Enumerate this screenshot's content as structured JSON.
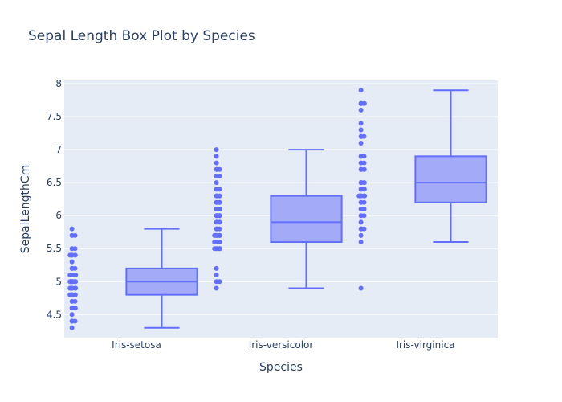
{
  "chart_data": {
    "type": "box",
    "title": "Sepal Length Box Plot by Species",
    "xlabel": "Species",
    "ylabel": "SepalLengthCm",
    "categories": [
      "Iris-setosa",
      "Iris-versicolor",
      "Iris-virginica"
    ],
    "ylim": [
      4.15,
      8.05
    ],
    "yticks": [
      4.5,
      5,
      5.5,
      6,
      6.5,
      7,
      7.5,
      8
    ],
    "ytick_labels": [
      "4.5",
      "5",
      "5.5",
      "6",
      "6.5",
      "7",
      "7.5",
      "8"
    ],
    "grid": true,
    "boxes": [
      {
        "category": "Iris-setosa",
        "min": 4.3,
        "q1": 4.8,
        "median": 5.0,
        "q3": 5.2,
        "max": 5.8
      },
      {
        "category": "Iris-versicolor",
        "min": 4.9,
        "q1": 5.6,
        "median": 5.9,
        "q3": 6.3,
        "max": 7.0
      },
      {
        "category": "Iris-virginica",
        "min": 5.6,
        "q1": 6.2,
        "median": 6.5,
        "q3": 6.9,
        "max": 7.9
      }
    ],
    "points": [
      [
        4.3,
        4.4,
        4.4,
        4.4,
        4.5,
        4.6,
        4.6,
        4.6,
        4.6,
        4.7,
        4.7,
        4.8,
        4.8,
        4.8,
        4.8,
        4.8,
        4.9,
        4.9,
        4.9,
        4.9,
        4.9,
        4.9,
        5.0,
        5.0,
        5.0,
        5.0,
        5.0,
        5.0,
        5.0,
        5.0,
        5.1,
        5.1,
        5.1,
        5.1,
        5.1,
        5.1,
        5.1,
        5.1,
        5.1,
        5.2,
        5.2,
        5.2,
        5.3,
        5.4,
        5.4,
        5.4,
        5.4,
        5.4,
        5.5,
        5.5,
        5.7,
        5.7,
        5.8
      ],
      [
        4.9,
        5.0,
        5.0,
        5.1,
        5.2,
        5.5,
        5.5,
        5.5,
        5.5,
        5.5,
        5.6,
        5.6,
        5.6,
        5.6,
        5.6,
        5.7,
        5.7,
        5.7,
        5.7,
        5.7,
        5.8,
        5.8,
        5.8,
        5.9,
        5.9,
        6.0,
        6.0,
        6.0,
        6.0,
        6.1,
        6.1,
        6.1,
        6.1,
        6.2,
        6.2,
        6.3,
        6.3,
        6.3,
        6.4,
        6.4,
        6.5,
        6.6,
        6.6,
        6.7,
        6.7,
        6.7,
        6.8,
        6.9,
        7.0
      ],
      [
        4.9,
        5.6,
        5.7,
        5.8,
        5.8,
        5.8,
        5.9,
        6.0,
        6.0,
        6.1,
        6.1,
        6.2,
        6.2,
        6.3,
        6.3,
        6.3,
        6.3,
        6.3,
        6.3,
        6.4,
        6.4,
        6.4,
        6.4,
        6.5,
        6.5,
        6.5,
        6.5,
        6.7,
        6.7,
        6.7,
        6.7,
        6.8,
        6.8,
        6.9,
        6.9,
        6.9,
        7.1,
        7.2,
        7.2,
        7.2,
        7.3,
        7.4,
        7.6,
        7.7,
        7.7,
        7.7,
        7.7,
        7.9
      ]
    ],
    "colors": {
      "plot_bg": "#e5ecf6",
      "grid": "#ffffff",
      "line": "#636efa",
      "fill": "#a3aaf8",
      "text": "#2a3f5f"
    }
  }
}
